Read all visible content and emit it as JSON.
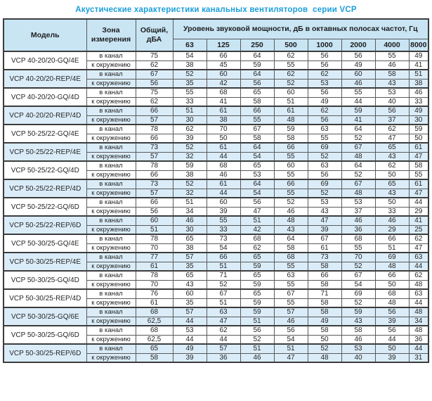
{
  "page_title": "Акустические характеристики канальных вентиляторов  серии VCP",
  "colors": {
    "title": "#1b9ed9",
    "header_bg": "#c9e5f4",
    "shaded_row_bg": "#daecf8",
    "border_dark": "#3c3c3c",
    "border_inner": "#5a5a5a"
  },
  "table": {
    "col_model": "Модель",
    "col_zone": "Зона измерения",
    "col_total": "Общий, дБА",
    "col_level": "Уровень звуковой мощности, дБ в октавных полосах частот, Гц",
    "frequencies": [
      "63",
      "125",
      "250",
      "500",
      "1000",
      "2000",
      "4000",
      "8000"
    ],
    "groups": [
      {
        "model": "VCP 40-20/20-GQ/4E",
        "shaded": false,
        "rows": [
          {
            "zone": "в канал",
            "total": "75",
            "values": [
              "54",
              "66",
              "64",
              "62",
              "56",
              "56",
              "55",
              "49"
            ]
          },
          {
            "zone": "к окружению",
            "total": "62",
            "values": [
              "38",
              "45",
              "59",
              "55",
              "56",
              "49",
              "46",
              "41"
            ]
          }
        ]
      },
      {
        "model": "VCP 40-20/20-REP/4E",
        "shaded": true,
        "rows": [
          {
            "zone": "в канал",
            "total": "67",
            "values": [
              "52",
              "60",
              "64",
              "62",
              "62",
              "60",
              "58",
              "51"
            ]
          },
          {
            "zone": "к окружению",
            "total": "56",
            "values": [
              "35",
              "42",
              "56",
              "52",
              "53",
              "46",
              "43",
              "38"
            ]
          }
        ]
      },
      {
        "model": "VCP 40-20/20-GQ/4D",
        "shaded": false,
        "rows": [
          {
            "zone": "в канал",
            "total": "75",
            "values": [
              "55",
              "68",
              "65",
              "60",
              "56",
              "55",
              "53",
              "46"
            ]
          },
          {
            "zone": "к окружению",
            "total": "62",
            "values": [
              "33",
              "41",
              "58",
              "51",
              "49",
              "44",
              "40",
              "33"
            ]
          }
        ]
      },
      {
        "model": "VCP 40-20/20-REP/4D",
        "shaded": true,
        "rows": [
          {
            "zone": "в канал",
            "total": "66",
            "values": [
              "51",
              "61",
              "66",
              "61",
              "62",
              "59",
              "56",
              "49"
            ]
          },
          {
            "zone": "к окружению",
            "total": "57",
            "values": [
              "30",
              "38",
              "55",
              "48",
              "56",
              "41",
              "37",
              "30"
            ]
          }
        ]
      },
      {
        "model": "VCP 50-25/22-GQ/4E",
        "shaded": false,
        "rows": [
          {
            "zone": "в канал",
            "total": "78",
            "values": [
              "62",
              "70",
              "67",
              "59",
              "63",
              "64",
              "62",
              "59"
            ]
          },
          {
            "zone": "к окружению",
            "total": "66",
            "values": [
              "39",
              "50",
              "58",
              "58",
              "55",
              "52",
              "47",
              "50"
            ]
          }
        ]
      },
      {
        "model": "VCP 50-25/22-REP/4E",
        "shaded": true,
        "rows": [
          {
            "zone": "в канал",
            "total": "73",
            "values": [
              "52",
              "61",
              "64",
              "66",
              "69",
              "67",
              "65",
              "61"
            ]
          },
          {
            "zone": "к окружению",
            "total": "57",
            "values": [
              "32",
              "44",
              "54",
              "55",
              "52",
              "48",
              "43",
              "47"
            ]
          }
        ]
      },
      {
        "model": "VCP 50-25/22-GQ/4D",
        "shaded": false,
        "rows": [
          {
            "zone": "в канал",
            "total": "78",
            "values": [
              "59",
              "68",
              "65",
              "60",
              "63",
              "64",
              "62",
              "58"
            ]
          },
          {
            "zone": "к окружению",
            "total": "66",
            "values": [
              "38",
              "46",
              "53",
              "55",
              "56",
              "52",
              "50",
              "55"
            ]
          }
        ]
      },
      {
        "model": "VCP 50-25/22-REP/4D",
        "shaded": true,
        "rows": [
          {
            "zone": "в канал",
            "total": "73",
            "values": [
              "52",
              "61",
              "64",
              "66",
              "69",
              "67",
              "65",
              "61"
            ]
          },
          {
            "zone": "к окружению",
            "total": "57",
            "values": [
              "32",
              "44",
              "54",
              "55",
              "52",
              "48",
              "43",
              "47"
            ]
          }
        ]
      },
      {
        "model": "VCP 50-25/22-GQ/6D",
        "shaded": false,
        "rows": [
          {
            "zone": "в канал",
            "total": "66",
            "values": [
              "51",
              "60",
              "56",
              "52",
              "53",
              "53",
              "50",
              "44"
            ]
          },
          {
            "zone": "к окружению",
            "total": "56",
            "values": [
              "34",
              "39",
              "47",
              "46",
              "43",
              "37",
              "33",
              "29"
            ]
          }
        ]
      },
      {
        "model": "VCP 50-25/22-REP/6D",
        "shaded": true,
        "rows": [
          {
            "zone": "в канал",
            "total": "60",
            "values": [
              "46",
              "55",
              "51",
              "48",
              "47",
              "46",
              "46",
              "41"
            ]
          },
          {
            "zone": "к окружению",
            "total": "51",
            "values": [
              "30",
              "33",
              "42",
              "43",
              "39",
              "36",
              "29",
              "25"
            ]
          }
        ]
      },
      {
        "model": "VCP 50-30/25-GQ/4E",
        "shaded": false,
        "rows": [
          {
            "zone": "в канал",
            "total": "78",
            "values": [
              "65",
              "73",
              "68",
              "64",
              "67",
              "68",
              "66",
              "62"
            ]
          },
          {
            "zone": "к окружению",
            "total": "70",
            "values": [
              "38",
              "54",
              "62",
              "58",
              "61",
              "55",
              "51",
              "47"
            ]
          }
        ]
      },
      {
        "model": "VCP 50-30/25-REP/4E",
        "shaded": true,
        "rows": [
          {
            "zone": "в канал",
            "total": "77",
            "values": [
              "57",
              "66",
              "65",
              "68",
              "73",
              "70",
              "69",
              "63"
            ]
          },
          {
            "zone": "к окружению",
            "total": "61",
            "values": [
              "35",
              "51",
              "59",
              "55",
              "58",
              "52",
              "48",
              "44"
            ]
          }
        ]
      },
      {
        "model": "VCP 50-30/25-GQ/4D",
        "shaded": false,
        "rows": [
          {
            "zone": "в канал",
            "total": "78",
            "values": [
              "65",
              "71",
              "65",
              "63",
              "66",
              "67",
              "66",
              "62"
            ]
          },
          {
            "zone": "к окружению",
            "total": "70",
            "values": [
              "43",
              "52",
              "59",
              "55",
              "58",
              "54",
              "50",
              "48"
            ]
          }
        ]
      },
      {
        "model": "VCP 50-30/25-REP/4D",
        "shaded": false,
        "rows": [
          {
            "zone": "в канал",
            "total": "76",
            "values": [
              "60",
              "67",
              "65",
              "67",
              "71",
              "69",
              "68",
              "63"
            ]
          },
          {
            "zone": "к окружению",
            "total": "61",
            "values": [
              "35",
              "51",
              "59",
              "55",
              "58",
              "52",
              "48",
              "44"
            ]
          }
        ]
      },
      {
        "model": "VCP 50-30/25-GQ/6E",
        "shaded": true,
        "rows": [
          {
            "zone": "в канал",
            "total": "68",
            "values": [
              "57",
              "63",
              "59",
              "57",
              "58",
              "59",
              "56",
              "48"
            ]
          },
          {
            "zone": "к окружению",
            "total": "62,5",
            "values": [
              "44",
              "47",
              "51",
              "46",
              "49",
              "43",
              "39",
              "34"
            ]
          }
        ]
      },
      {
        "model": "VCP 50-30/25-GQ/6D",
        "shaded": false,
        "rows": [
          {
            "zone": "в канал",
            "total": "68",
            "values": [
              "53",
              "62",
              "56",
              "56",
              "58",
              "58",
              "56",
              "48"
            ]
          },
          {
            "zone": "к окружению",
            "total": "62,5",
            "values": [
              "44",
              "44",
              "52",
              "54",
              "50",
              "46",
              "44",
              "36"
            ]
          }
        ]
      },
      {
        "model": "VCP 50-30/25-REP/6D",
        "shaded": true,
        "rows": [
          {
            "zone": "в канал",
            "total": "65",
            "values": [
              "49",
              "57",
              "51",
              "51",
              "52",
              "53",
              "50",
              "44"
            ]
          },
          {
            "zone": "к окружению",
            "total": "58",
            "values": [
              "39",
              "36",
              "46",
              "47",
              "48",
              "40",
              "39",
              "31"
            ]
          }
        ]
      }
    ]
  }
}
